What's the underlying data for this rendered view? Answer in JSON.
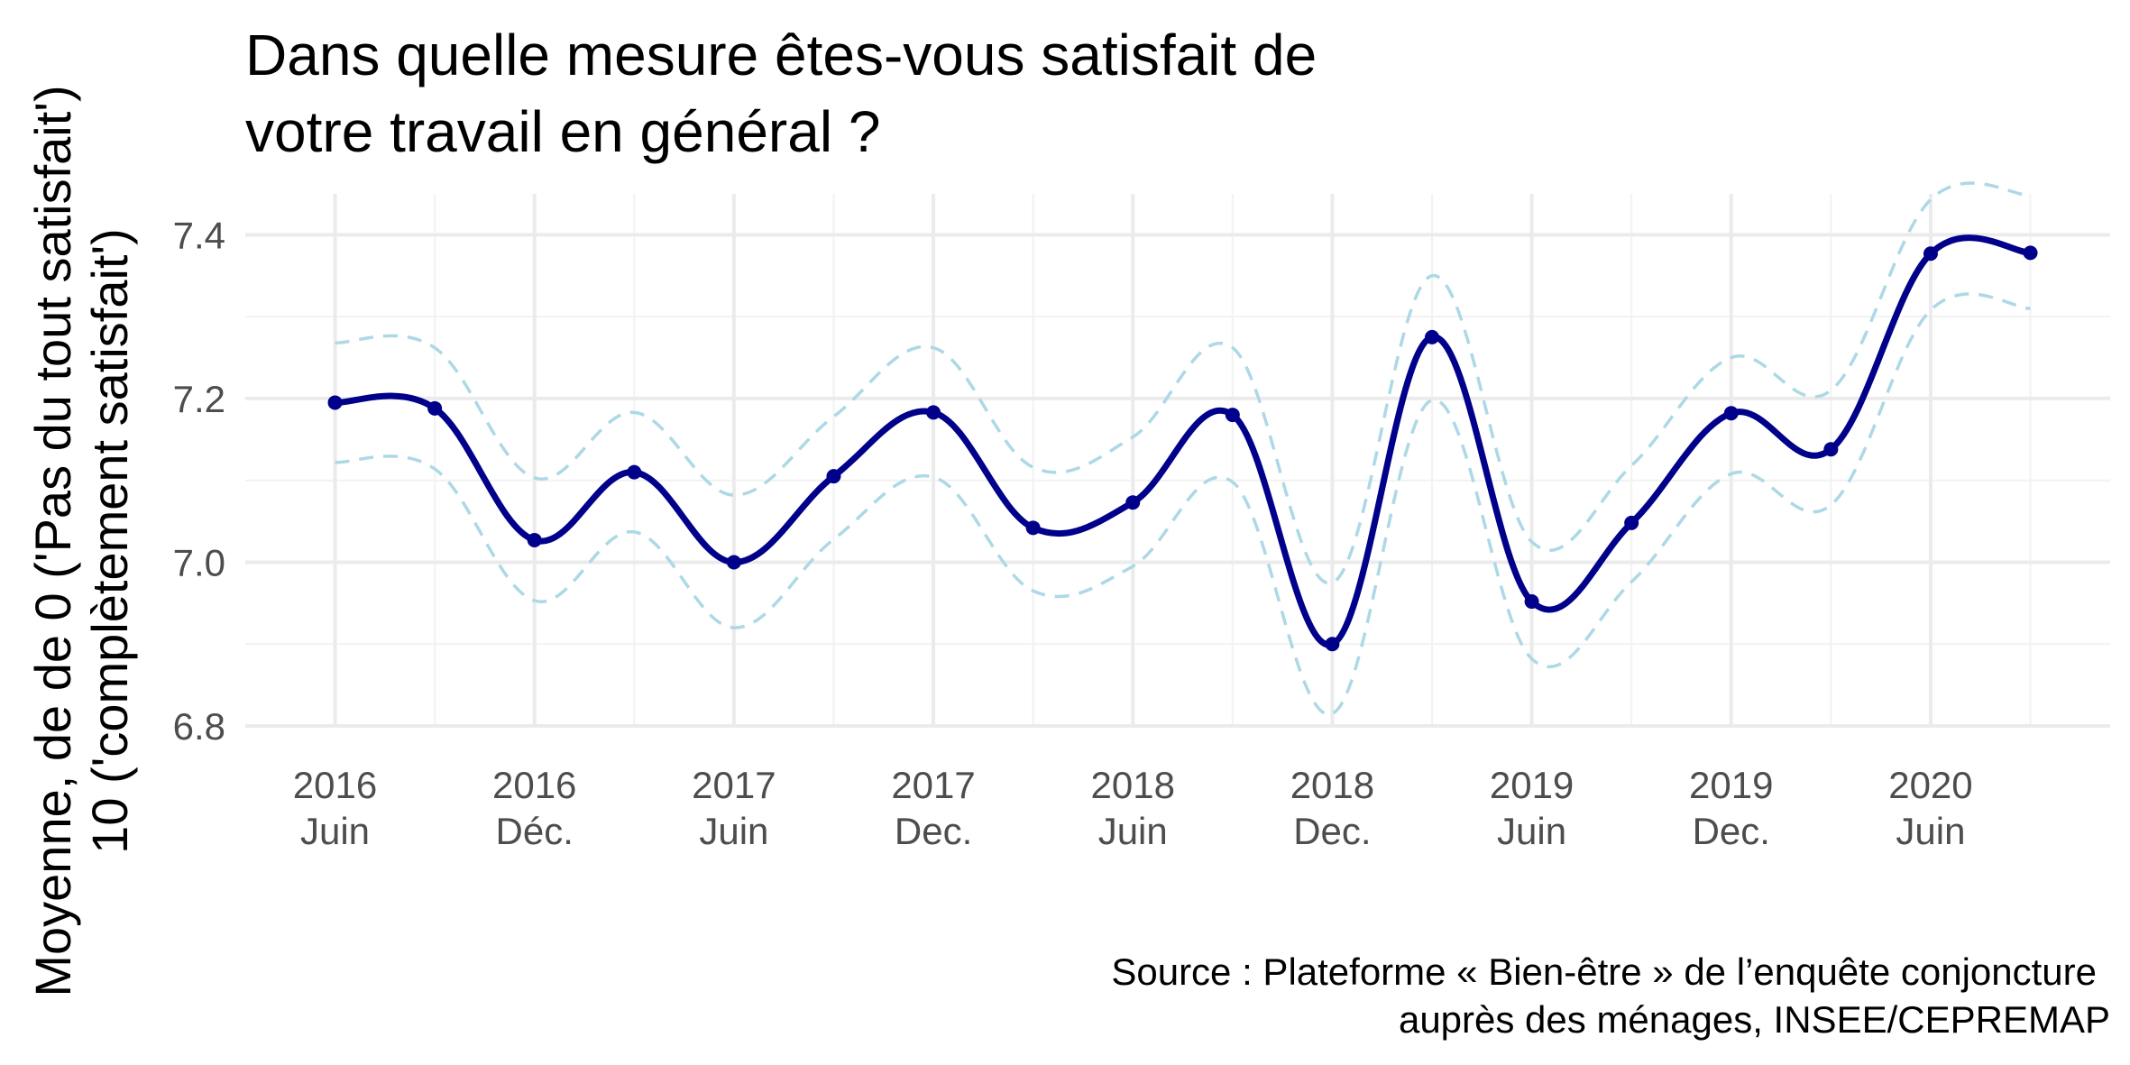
{
  "chart_data": {
    "type": "line",
    "title": [
      "Dans quelle mesure êtes-vous satisfait de",
      "votre travail en général ?"
    ],
    "ylabel": [
      "Moyenne, de de 0 ('Pas du tout satisfait')",
      "10 ('complètement satisfait')"
    ],
    "caption": [
      "Source : Plateforme « Bien-être » de l’enquête conjoncture",
      "auprès des ménages, INSEE/CEPREMAP"
    ],
    "ylim": [
      6.8,
      7.45
    ],
    "yticks": [
      6.8,
      7.0,
      7.2,
      7.4
    ],
    "ytick_labels": [
      "6.8",
      "7.0",
      "7.2",
      "7.4"
    ],
    "x_tick_labels": [
      [
        "2016",
        "Juin"
      ],
      [
        "2016",
        "Déc."
      ],
      [
        "2017",
        "Juin"
      ],
      [
        "2017",
        "Dec."
      ],
      [
        "2018",
        "Juin"
      ],
      [
        "2018",
        "Dec."
      ],
      [
        "2019",
        "Juin"
      ],
      [
        "2019",
        "Dec."
      ],
      [
        "2020",
        "Juin"
      ]
    ],
    "x_tick_positions": [
      0,
      2,
      4,
      6,
      8,
      10,
      12,
      14,
      16
    ],
    "xlim": [
      -0.9,
      17.8
    ],
    "grid": true,
    "series": [
      {
        "role": "estimate",
        "color": "#00008b",
        "x": [
          0,
          1,
          2,
          3,
          4,
          5,
          6,
          7,
          8,
          9,
          10,
          11,
          12,
          13,
          14,
          15,
          16,
          17
        ],
        "values": [
          7.195,
          7.188,
          7.027,
          7.11,
          7.0,
          7.105,
          7.183,
          7.042,
          7.073,
          7.18,
          6.9,
          7.275,
          6.952,
          7.048,
          7.182,
          7.138,
          7.377,
          7.378
        ]
      },
      {
        "role": "upper-bound",
        "color": "#add8e6",
        "x": [
          0,
          1,
          2,
          3,
          4,
          5,
          6,
          7,
          8,
          9,
          10,
          11,
          12,
          13,
          14,
          15,
          16,
          17
        ],
        "values": [
          7.268,
          7.262,
          7.103,
          7.183,
          7.082,
          7.178,
          7.262,
          7.116,
          7.153,
          7.262,
          6.975,
          7.35,
          7.025,
          7.118,
          7.25,
          7.21,
          7.443,
          7.448
        ]
      },
      {
        "role": "lower-bound",
        "color": "#add8e6",
        "x": [
          0,
          1,
          2,
          3,
          4,
          5,
          6,
          7,
          8,
          9,
          10,
          11,
          12,
          13,
          14,
          15,
          16,
          17
        ],
        "values": [
          7.122,
          7.114,
          6.953,
          7.037,
          6.92,
          7.028,
          7.104,
          6.965,
          6.995,
          7.098,
          6.815,
          7.198,
          6.882,
          6.976,
          7.108,
          7.07,
          7.308,
          7.31
        ]
      }
    ]
  }
}
